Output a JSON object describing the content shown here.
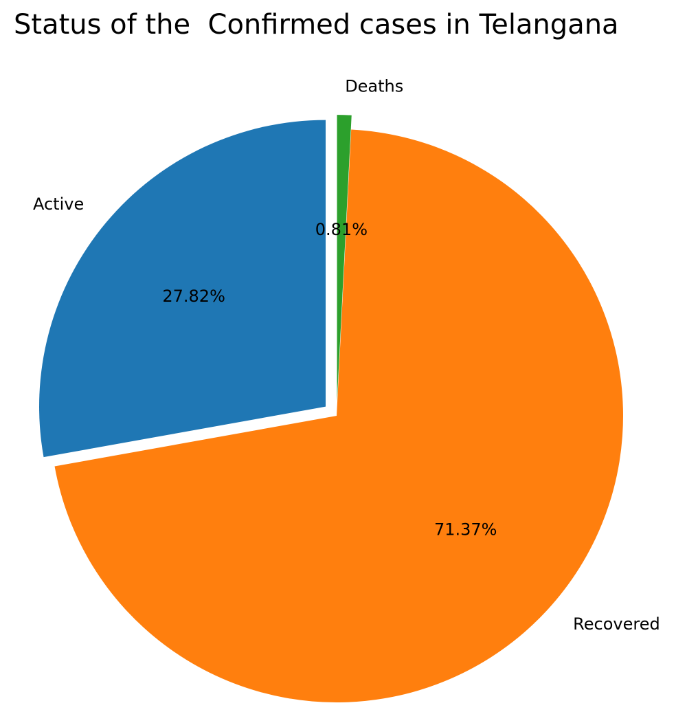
{
  "chart_data": {
    "type": "pie",
    "title": "Status of the  Confirmed cases in Telangana",
    "slices": [
      {
        "label": "Active",
        "value": 27.82,
        "pct_label": "27.82%",
        "color": "#1f77b4",
        "explode": true
      },
      {
        "label": "Recovered",
        "value": 71.37,
        "pct_label": "71.37%",
        "color": "#ff7f0e",
        "explode": false
      },
      {
        "label": "Deaths",
        "value": 0.81,
        "pct_label": "0.81%",
        "color": "#2ca02c",
        "explode": true
      }
    ],
    "start_angle_deg": 90,
    "direction": "counterclockwise",
    "legend": "none"
  }
}
